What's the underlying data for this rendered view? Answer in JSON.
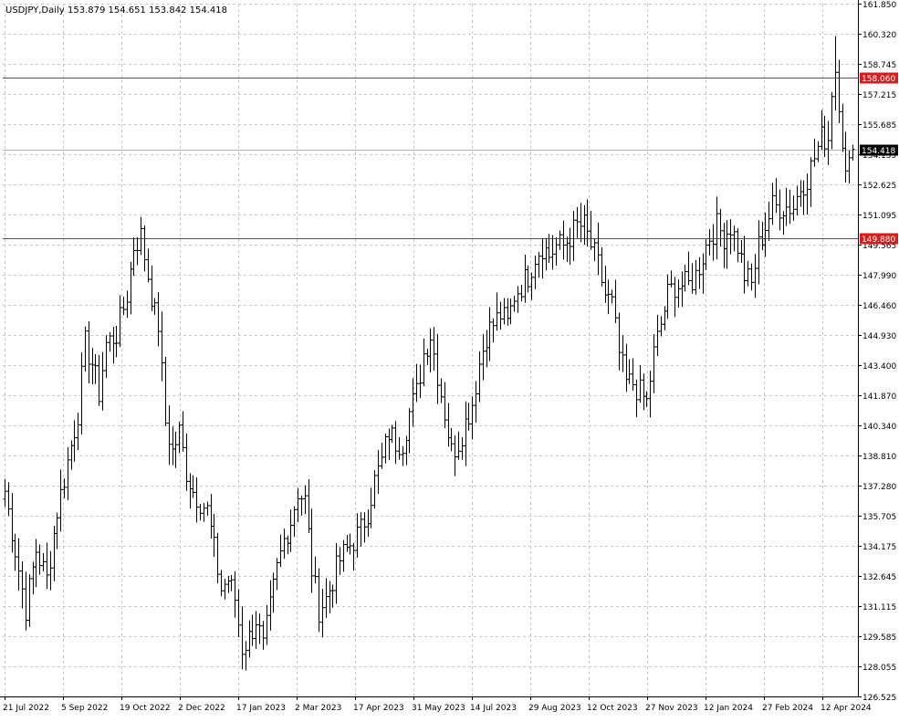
{
  "header": {
    "symbol": "USDJPY,Daily",
    "ohlc": "153.879 154.651 153.842 154.418"
  },
  "colors": {
    "background": "#ffffff",
    "grid": "#c8c8c8",
    "bars": "#000000",
    "level_line": "#d21e1e",
    "level_label_bg": "#d21e1e",
    "last_price_line": "#b4b4b4",
    "last_price_bg": "#000000"
  },
  "chart_data": {
    "type": "ohlc",
    "symbol": "USDJPY",
    "timeframe": "Daily",
    "grid": true,
    "ylim": [
      126.525,
      161.85
    ],
    "y_ticks": [
      "161.850",
      "160.320",
      "158.745",
      "157.215",
      "155.685",
      "154.155",
      "152.625",
      "151.095",
      "149.565",
      "147.990",
      "146.460",
      "144.930",
      "143.400",
      "141.870",
      "140.340",
      "138.810",
      "137.280",
      "135.705",
      "134.175",
      "132.645",
      "131.115",
      "129.585",
      "128.055",
      "126.525"
    ],
    "x_ticks": [
      "21 Jul 2022",
      "5 Sep 2022",
      "19 Oct 2022",
      "2 Dec 2022",
      "17 Jan 2023",
      "2 Mar 2023",
      "17 Apr 2023",
      "31 May 2023",
      "14 Jul 2023",
      "29 Aug 2023",
      "12 Oct 2023",
      "27 Nov 2023",
      "12 Jan 2024",
      "27 Feb 2024",
      "12 Apr 2024"
    ],
    "levels": [
      {
        "label": "158.060",
        "value": 158.06
      },
      {
        "label": "149.880",
        "value": 149.88
      }
    ],
    "last_price": {
      "label": "154.418",
      "value": 154.418
    },
    "anchors": [
      [
        0,
        137.0
      ],
      [
        3,
        134.0
      ],
      [
        6,
        131.0
      ],
      [
        9,
        134.0
      ],
      [
        12,
        132.5
      ],
      [
        15,
        136.0
      ],
      [
        18,
        138.5
      ],
      [
        21,
        141.0
      ],
      [
        23,
        144.5
      ],
      [
        25,
        143.5
      ],
      [
        27,
        142.0
      ],
      [
        29,
        144.5
      ],
      [
        32,
        145.0
      ],
      [
        35,
        147.0
      ],
      [
        37,
        149.5
      ],
      [
        39,
        150.0
      ],
      [
        41,
        148.0
      ],
      [
        43,
        146.0
      ],
      [
        44,
        145.5
      ],
      [
        46,
        140.5
      ],
      [
        48,
        139.0
      ],
      [
        50,
        140.0
      ],
      [
        52,
        138.0
      ],
      [
        54,
        137.0
      ],
      [
        56,
        136.5
      ],
      [
        58,
        136.0
      ],
      [
        60,
        134.0
      ],
      [
        62,
        132.0
      ],
      [
        64,
        132.5
      ],
      [
        66,
        131.5
      ],
      [
        68,
        129.0
      ],
      [
        70,
        129.5
      ],
      [
        72,
        130.5
      ],
      [
        74,
        129.0
      ],
      [
        76,
        131.0
      ],
      [
        78,
        133.0
      ],
      [
        80,
        134.5
      ],
      [
        82,
        135.5
      ],
      [
        84,
        137.0
      ],
      [
        86,
        136.5
      ],
      [
        88,
        133.0
      ],
      [
        90,
        131.0
      ],
      [
        92,
        131.5
      ],
      [
        94,
        132.5
      ],
      [
        96,
        133.5
      ],
      [
        98,
        134.0
      ],
      [
        100,
        134.5
      ],
      [
        102,
        135.0
      ],
      [
        104,
        136.0
      ],
      [
        106,
        137.5
      ],
      [
        108,
        138.5
      ],
      [
        110,
        140.0
      ],
      [
        112,
        139.5
      ],
      [
        114,
        139.5
      ],
      [
        116,
        141.0
      ],
      [
        118,
        142.0
      ],
      [
        120,
        144.0
      ],
      [
        122,
        145.0
      ],
      [
        124,
        143.0
      ],
      [
        126,
        141.0
      ],
      [
        128,
        139.0
      ],
      [
        130,
        139.5
      ],
      [
        132,
        140.5
      ],
      [
        134,
        141.5
      ],
      [
        136,
        143.5
      ],
      [
        138,
        145.0
      ],
      [
        140,
        145.5
      ],
      [
        142,
        146.0
      ],
      [
        144,
        145.5
      ],
      [
        146,
        147.0
      ],
      [
        148,
        147.5
      ],
      [
        150,
        148.0
      ],
      [
        152,
        149.0
      ],
      [
        154,
        149.5
      ],
      [
        156,
        149.0
      ],
      [
        158,
        149.5
      ],
      [
        160,
        149.5
      ],
      [
        162,
        150.0
      ],
      [
        164,
        150.5
      ],
      [
        166,
        150.5
      ],
      [
        168,
        149.5
      ],
      [
        170,
        148.5
      ],
      [
        172,
        147.0
      ],
      [
        174,
        146.5
      ],
      [
        176,
        144.0
      ],
      [
        178,
        142.5
      ],
      [
        180,
        142.5
      ],
      [
        182,
        142.0
      ],
      [
        184,
        141.5
      ],
      [
        186,
        144.0
      ],
      [
        188,
        145.5
      ],
      [
        190,
        147.0
      ],
      [
        192,
        147.5
      ],
      [
        194,
        147.5
      ],
      [
        196,
        147.5
      ],
      [
        198,
        148.0
      ],
      [
        200,
        149.0
      ],
      [
        202,
        150.0
      ],
      [
        204,
        150.5
      ],
      [
        206,
        150.0
      ],
      [
        208,
        150.5
      ],
      [
        210,
        149.5
      ],
      [
        212,
        148.0
      ],
      [
        214,
        147.5
      ],
      [
        216,
        149.5
      ],
      [
        218,
        150.5
      ],
      [
        220,
        151.5
      ],
      [
        222,
        151.5
      ],
      [
        224,
        151.5
      ],
      [
        226,
        151.5
      ],
      [
        228,
        152.5
      ],
      [
        230,
        153.0
      ],
      [
        232,
        154.0
      ],
      [
        234,
        155.0
      ],
      [
        236,
        155.0
      ],
      [
        237,
        157.5
      ],
      [
        238,
        158.5
      ],
      [
        239,
        157.0
      ],
      [
        240,
        155.0
      ],
      [
        241,
        153.0
      ],
      [
        242,
        153.5
      ],
      [
        243,
        154.418
      ]
    ],
    "n_bars": 244
  }
}
